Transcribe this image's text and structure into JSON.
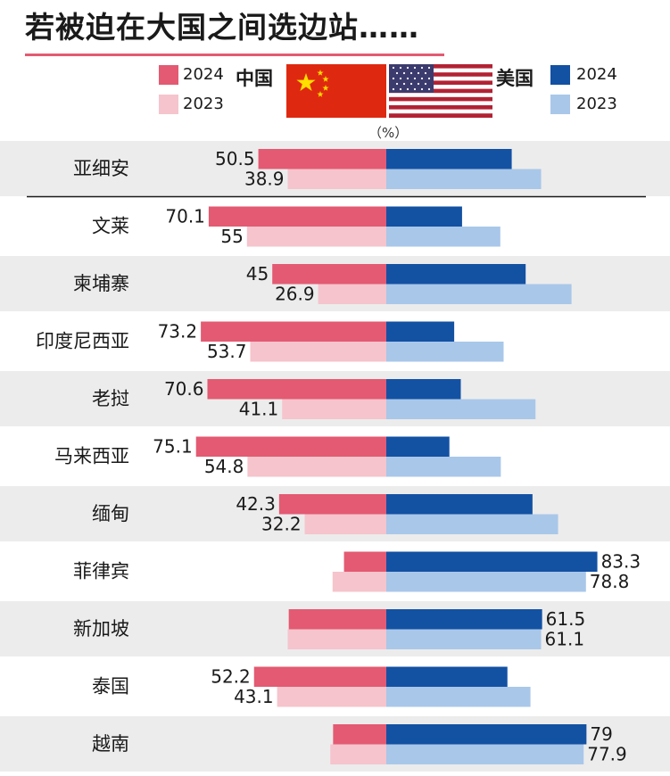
{
  "title": "若被迫在大国之间选边站……",
  "legend": {
    "china": {
      "name": "中国",
      "y2024": "2024",
      "y2023": "2023",
      "color_2024": "#e35a72",
      "color_2023": "#f5c4cc"
    },
    "us": {
      "name": "美国",
      "y2024": "2024",
      "y2023": "2023",
      "color_2024": "#1351a3",
      "color_2023": "#a9c7e9"
    }
  },
  "unit": "（%）",
  "colors": {
    "row_band": "#ececec",
    "divider": "#1a1a1a"
  },
  "chart_data": {
    "type": "bar",
    "orientation": "diverging-horizontal",
    "left_side": "中国",
    "right_side": "美国",
    "categories": [
      "亚细安",
      "文莱",
      "柬埔寨",
      "印度尼西亚",
      "老挝",
      "马来西亚",
      "缅甸",
      "菲律宾",
      "新加坡",
      "泰国",
      "越南"
    ],
    "series": [
      {
        "name": "中国 2024",
        "side": "left",
        "values": [
          50.5,
          70.1,
          45,
          73.2,
          70.6,
          75.1,
          42.3,
          16.7,
          38.5,
          52.2,
          21
        ]
      },
      {
        "name": "中国 2023",
        "side": "left",
        "values": [
          38.9,
          55,
          26.9,
          53.7,
          41.1,
          54.8,
          32.2,
          21.2,
          38.9,
          43.1,
          22.1
        ]
      },
      {
        "name": "美国 2024",
        "side": "right",
        "values": [
          49.5,
          29.9,
          55,
          26.8,
          29.4,
          24.9,
          57.7,
          83.3,
          61.5,
          47.8,
          79
        ]
      },
      {
        "name": "美国 2023",
        "side": "right",
        "values": [
          61.1,
          45,
          73.1,
          46.3,
          58.9,
          45.2,
          67.8,
          78.8,
          61.1,
          56.9,
          77.9
        ]
      }
    ],
    "data_labels": {
      "中国 2024": [
        "50.5",
        "70.1",
        "45",
        "73.2",
        "70.6",
        "75.1",
        "42.3",
        "",
        "",
        "52.2",
        ""
      ],
      "中国 2023": [
        "38.9",
        "55",
        "26.9",
        "53.7",
        "41.1",
        "54.8",
        "32.2",
        "",
        "",
        "43.1",
        ""
      ],
      "美国 2024": [
        "",
        "",
        "",
        "",
        "",
        "",
        "",
        "83.3",
        "61.5",
        "",
        "79"
      ],
      "美国 2023": [
        "",
        "",
        "",
        "",
        "",
        "",
        "",
        "78.8",
        "61.1",
        "",
        "77.9"
      ]
    },
    "xlim": [
      0,
      100
    ],
    "grid": false,
    "legend_position": "top"
  }
}
